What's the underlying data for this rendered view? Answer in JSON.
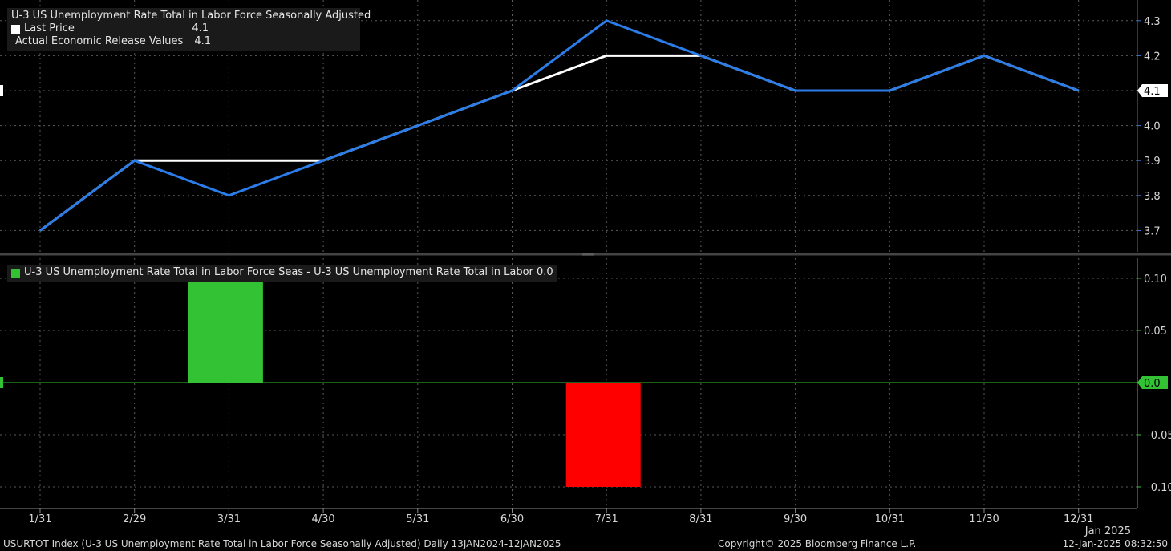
{
  "chart_data": [
    {
      "type": "line",
      "title": "U-3 US Unemployment Rate Total in Labor Force Seasonally Adjusted",
      "categories": [
        "1/31",
        "2/29",
        "3/31",
        "4/30",
        "5/31",
        "6/30",
        "7/31",
        "8/31",
        "9/30",
        "10/31",
        "11/30",
        "12/31"
      ],
      "series": [
        {
          "name": "Last Price",
          "value_label": "4.1",
          "color": "#ffffff",
          "values": [
            3.7,
            3.9,
            3.9,
            3.9,
            4.0,
            4.1,
            4.2,
            4.2,
            4.1,
            4.1,
            4.2,
            4.1
          ]
        },
        {
          "name": "Actual Economic Release Values",
          "value_label": "4.1",
          "color": "#2b7de9",
          "values": [
            3.7,
            3.9,
            3.8,
            3.9,
            4.0,
            4.1,
            4.3,
            4.2,
            4.1,
            4.1,
            4.2,
            4.1
          ]
        }
      ],
      "yticks": [
        "3.7",
        "3.8",
        "3.9",
        "4.0",
        "4.1",
        "4.2",
        "4.3"
      ],
      "ylim": [
        3.62,
        4.36
      ],
      "last_value_label": "4.1",
      "grid": true
    },
    {
      "type": "bar",
      "title": "U-3 US Unemployment Rate Total in Labor Force Seas - U-3 US Unemployment Rate Total in Labor 0.0",
      "categories": [
        "1/31",
        "2/29",
        "3/31",
        "4/30",
        "5/31",
        "6/30",
        "7/31",
        "8/31",
        "9/30",
        "10/31",
        "11/30",
        "12/31"
      ],
      "values": [
        0.0,
        0.0,
        0.1,
        0.0,
        0.0,
        0.0,
        -0.1,
        0.0,
        0.0,
        0.0,
        0.0,
        0.0
      ],
      "positive_color": "#33c233",
      "negative_color": "#ff0000",
      "yticks": [
        "0.10",
        "0.05",
        "0.0",
        "-0.05",
        "-0.10"
      ],
      "ylim": [
        -0.1,
        0.1
      ],
      "last_value_label": "0.0",
      "grid": true
    }
  ],
  "x_axis": {
    "ticks": [
      "1/31",
      "2/29",
      "3/31",
      "4/30",
      "5/31",
      "6/30",
      "7/31",
      "8/31",
      "9/30",
      "10/31",
      "11/30",
      "12/31"
    ],
    "year_label": "Jan 2025"
  },
  "footer": {
    "left": "USURTOT Index (U-3 US Unemployment Rate Total in Labor Force Seasonally Adjusted)  Daily 13JAN2024-12JAN2025",
    "center": "Copyright© 2025 Bloomberg Finance L.P.",
    "right": "12-Jan-2025 08:32:50"
  },
  "colors": {
    "grid": "#5a5a5a",
    "axis_green": "#33c233",
    "axis_blue": "#2b7de9",
    "background": "#000000"
  }
}
